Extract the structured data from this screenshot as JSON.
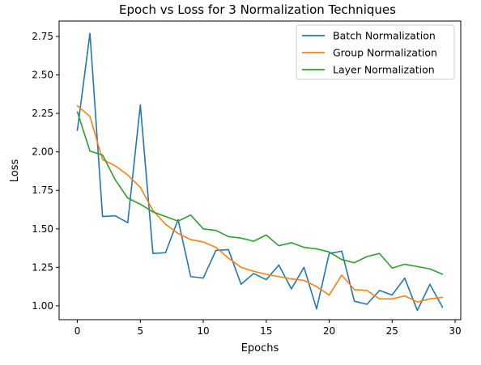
{
  "chart_data": {
    "type": "line",
    "title": "Epoch vs Loss for 3 Normalization Techniques",
    "xlabel": "Epochs",
    "ylabel": "Loss",
    "xlim": [
      -1.45,
      30.45
    ],
    "ylim": [
      0.91,
      2.85
    ],
    "xticks": [
      0,
      5,
      10,
      15,
      20,
      25,
      30
    ],
    "yticks": [
      1.0,
      1.25,
      1.5,
      1.75,
      2.0,
      2.25,
      2.5,
      2.75
    ],
    "ytick_labels": [
      "1.00",
      "1.25",
      "1.50",
      "1.75",
      "2.00",
      "2.25",
      "2.50",
      "2.75"
    ],
    "legend_position": "top-right",
    "grid": false,
    "x": [
      0,
      1,
      2,
      3,
      4,
      5,
      6,
      7,
      8,
      9,
      10,
      11,
      12,
      13,
      14,
      15,
      16,
      17,
      18,
      19,
      20,
      21,
      22,
      23,
      24,
      25,
      26,
      27,
      28,
      29
    ],
    "series": [
      {
        "name": "Batch Normalization",
        "color": "#1f77b4",
        "values": [
          2.14,
          2.77,
          1.58,
          1.585,
          1.54,
          2.305,
          1.34,
          1.345,
          1.56,
          1.19,
          1.18,
          1.36,
          1.365,
          1.14,
          1.21,
          1.17,
          1.265,
          1.11,
          1.25,
          0.98,
          1.34,
          1.355,
          1.03,
          1.01,
          1.1,
          1.07,
          1.18,
          0.97,
          1.14,
          0.99
        ]
      },
      {
        "name": "Group Normalization",
        "color": "#ff7f0e",
        "values": [
          2.3,
          2.23,
          1.95,
          1.91,
          1.85,
          1.77,
          1.62,
          1.53,
          1.47,
          1.43,
          1.415,
          1.38,
          1.31,
          1.25,
          1.225,
          1.205,
          1.19,
          1.175,
          1.165,
          1.125,
          1.07,
          1.2,
          1.105,
          1.1,
          1.045,
          1.045,
          1.065,
          1.025,
          1.045,
          1.055
        ]
      },
      {
        "name": "Layer Normalization",
        "color": "#2ca02c",
        "values": [
          2.26,
          2.005,
          1.98,
          1.82,
          1.7,
          1.66,
          1.61,
          1.58,
          1.55,
          1.59,
          1.5,
          1.49,
          1.45,
          1.44,
          1.42,
          1.46,
          1.39,
          1.41,
          1.38,
          1.37,
          1.35,
          1.3,
          1.28,
          1.32,
          1.34,
          1.245,
          1.27,
          1.255,
          1.24,
          1.205
        ]
      }
    ]
  }
}
